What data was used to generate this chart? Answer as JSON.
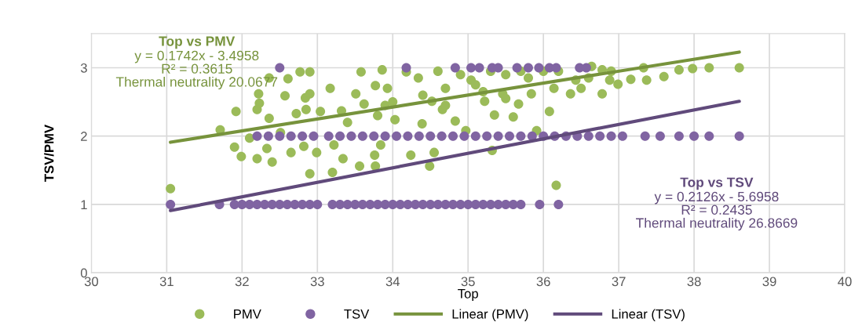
{
  "chart_data": {
    "type": "scatter",
    "xlabel": "Top",
    "ylabel": "TSV/PMV",
    "xlim": [
      30,
      40
    ],
    "xticks": [
      30,
      31,
      32,
      33,
      34,
      35,
      36,
      37,
      38,
      39,
      40
    ],
    "ylim": [
      0,
      3.5
    ],
    "yticks": [
      0,
      1,
      2,
      3
    ],
    "grid": true,
    "legend": "bottom",
    "series": [
      {
        "name": "PMV",
        "color": "#9bbb59",
        "marker": "circle",
        "x": [
          31.05,
          31.71,
          31.92,
          31.9,
          31.99,
          32.1,
          32.2,
          32.2,
          32.23,
          32.22,
          32.36,
          32.36,
          32.33,
          32.4,
          32.51,
          32.57,
          32.61,
          32.65,
          32.72,
          32.77,
          32.82,
          32.84,
          32.85,
          32.9,
          32.9,
          32.9,
          32.99,
          33.04,
          33.17,
          33.2,
          33.22,
          33.32,
          33.34,
          33.51,
          33.56,
          33.58,
          33.62,
          33.76,
          33.77,
          33.77,
          33.86,
          33.84,
          33.93,
          34.03,
          34.18,
          34.24,
          34.39,
          34.49,
          34.55,
          34.34,
          34.52,
          34.83,
          34.7,
          34.66,
          34.97,
          35.04,
          35.22,
          35.32,
          35.35,
          35.46,
          35.6,
          35.67,
          35.84,
          35.91,
          36.08,
          36.14,
          36.17,
          36.36,
          36.43,
          36.64,
          36.6,
          36.78,
          36.78,
          36.88,
          36.99,
          37.16,
          37.33,
          37.37,
          37.6,
          37.8,
          37.98,
          38.2,
          38.6,
          34.9,
          35.1,
          35.3,
          35.5,
          35.7,
          35.8,
          36.0,
          34.6,
          34.4,
          34.0,
          33.8,
          33.4,
          33.9,
          34.7,
          35.2,
          35.5,
          36.2,
          36.5,
          36.9
        ],
        "values": [
          1.23,
          2.09,
          2.36,
          1.84,
          1.7,
          1.97,
          1.67,
          2.39,
          2.48,
          2.62,
          2.85,
          2.26,
          1.82,
          1.62,
          2.05,
          2.59,
          2.84,
          1.76,
          2.33,
          2.94,
          1.85,
          2.56,
          2.39,
          2.94,
          1.45,
          2.62,
          1.76,
          2.36,
          2.7,
          1.47,
          1.87,
          2.37,
          1.67,
          2.62,
          1.56,
          2.94,
          2.47,
          1.72,
          1.56,
          2.74,
          2.97,
          1.87,
          2.7,
          2.24,
          2.94,
          1.72,
          2.18,
          1.56,
          1.76,
          2.85,
          2.51,
          2.22,
          2.7,
          2.39,
          2.08,
          2.82,
          2.51,
          1.79,
          2.31,
          2.62,
          2.28,
          2.47,
          2.62,
          2.08,
          2.36,
          2.7,
          1.28,
          2.62,
          2.82,
          3.02,
          2.85,
          2.62,
          2.97,
          2.82,
          2.76,
          2.83,
          3.0,
          2.82,
          2.87,
          2.97,
          2.99,
          3.0,
          3.0,
          2.9,
          2.75,
          2.95,
          2.9,
          2.95,
          2.85,
          2.95,
          2.95,
          2.6,
          2.5,
          2.3,
          2.2,
          2.45,
          2.45,
          2.65,
          2.55,
          2.95,
          2.7,
          2.95
        ]
      },
      {
        "name": "TSV",
        "color": "#8064a2",
        "marker": "circle",
        "x": [
          31.05,
          31.7,
          31.9,
          32.0,
          32.1,
          32.2,
          32.3,
          32.4,
          32.5,
          32.6,
          32.7,
          32.8,
          32.9,
          33.0,
          33.2,
          33.3,
          33.4,
          33.5,
          33.6,
          33.7,
          33.8,
          33.9,
          34.0,
          34.1,
          34.2,
          34.3,
          34.4,
          34.5,
          34.6,
          34.7,
          34.8,
          34.9,
          35.0,
          35.1,
          35.2,
          35.3,
          35.4,
          35.5,
          35.6,
          35.7,
          35.95,
          36.2,
          32.2,
          32.35,
          32.5,
          32.65,
          32.8,
          32.95,
          33.15,
          33.3,
          33.45,
          33.6,
          33.75,
          33.9,
          34.05,
          34.2,
          34.35,
          34.5,
          34.65,
          34.8,
          34.95,
          35.1,
          35.25,
          35.4,
          35.55,
          35.7,
          35.85,
          36.0,
          36.15,
          36.3,
          36.45,
          36.6,
          36.75,
          36.9,
          37.05,
          37.35,
          37.55,
          37.8,
          38.0,
          38.2,
          38.6,
          32.5,
          34.18,
          34.83,
          35.04,
          35.15,
          35.32,
          35.4,
          35.65,
          35.8,
          35.94,
          36.08,
          36.17,
          36.48,
          36.57
        ],
        "values": [
          1,
          1,
          1,
          1,
          1,
          1,
          1,
          1,
          1,
          1,
          1,
          1,
          1,
          1,
          1,
          1,
          1,
          1,
          1,
          1,
          1,
          1,
          1,
          1,
          1,
          1,
          1,
          1,
          1,
          1,
          1,
          1,
          1,
          1,
          1,
          1,
          1,
          1,
          1,
          1,
          1,
          1,
          2,
          2,
          2,
          2,
          2,
          2,
          2,
          2,
          2,
          2,
          2,
          2,
          2,
          2,
          2,
          2,
          2,
          2,
          2,
          2,
          2,
          2,
          2,
          2,
          2,
          2,
          2,
          2,
          2,
          2,
          2,
          2,
          2,
          2,
          2,
          2,
          2,
          2,
          2,
          3,
          3,
          3,
          3,
          3,
          3,
          3,
          3,
          3,
          3,
          3,
          3,
          3,
          3
        ]
      },
      {
        "name": "Linear (PMV)",
        "type": "line",
        "color": "#77933c",
        "x": [
          31.05,
          38.6
        ],
        "values": [
          1.91,
          3.23
        ],
        "marker": "none"
      },
      {
        "name": "Linear (TSV)",
        "type": "line",
        "color": "#604a7b",
        "x": [
          31.05,
          38.6
        ],
        "values": [
          0.91,
          2.51
        ],
        "marker": "none"
      }
    ],
    "annotations": [
      "Top vs PMV",
      "y = 0.1742x - 3.4958\nR² = 0.3615\nThermal neutrality 20.0677",
      "Top vs TSV",
      "y = 0.2126x - 5.6958\nR² = 0.2435\nThermal neutrality 26.8669"
    ]
  }
}
